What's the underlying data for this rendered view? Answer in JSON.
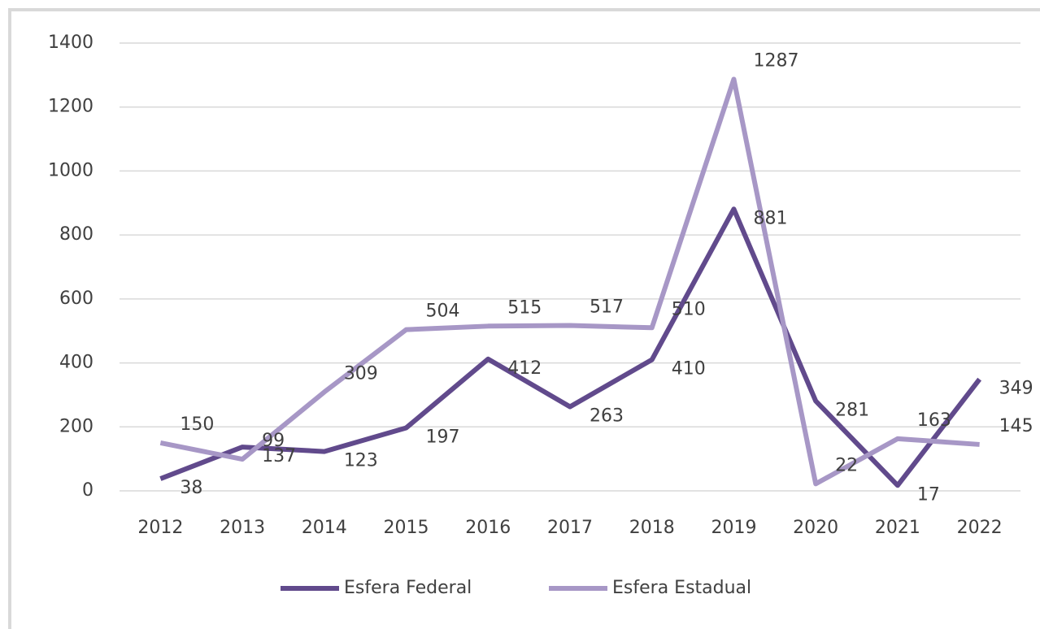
{
  "chart_data": {
    "type": "line",
    "categories": [
      "2012",
      "2013",
      "2014",
      "2015",
      "2016",
      "2017",
      "2018",
      "2019",
      "2020",
      "2021",
      "2022"
    ],
    "series": [
      {
        "name": "Esfera Federal",
        "color": "#614a8c",
        "values": [
          38,
          137,
          123,
          197,
          412,
          263,
          410,
          881,
          281,
          17,
          349
        ]
      },
      {
        "name": "Esfera Estadual",
        "color": "#a797c6",
        "values": [
          150,
          99,
          309,
          504,
          515,
          517,
          510,
          1287,
          22,
          163,
          145
        ]
      }
    ],
    "ylim": [
      0,
      1400
    ],
    "yticks": [
      0,
      200,
      400,
      600,
      800,
      1000,
      1200,
      1400
    ],
    "grid": true,
    "legend": "bottom"
  }
}
